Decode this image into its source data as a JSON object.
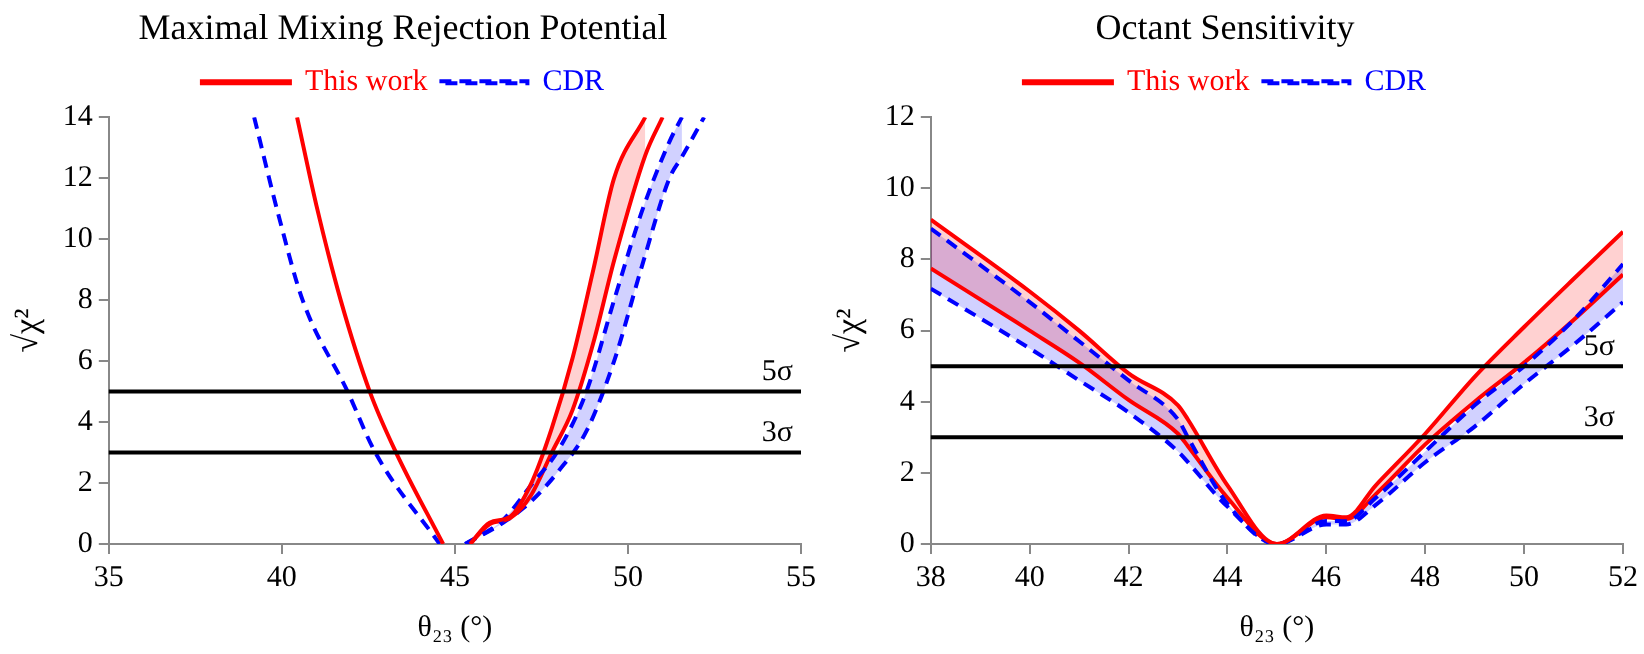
{
  "chart_data": [
    {
      "type": "line",
      "title": "Maximal Mixing Rejection Potential",
      "xlabel": "θ₂₃ (°)",
      "ylabel": "√χ²",
      "xlim": [
        35,
        55
      ],
      "xticks": [
        35,
        40,
        45,
        50,
        55
      ],
      "ylim": [
        0,
        14
      ],
      "yticks": [
        0,
        2,
        4,
        6,
        8,
        10,
        12,
        14
      ],
      "grid": false,
      "legend": "top",
      "series": [
        {
          "name": "This work",
          "color": "#ff0000",
          "line_style": "solid",
          "x": [
            45.44,
            46.0,
            46.6,
            47.2,
            47.8,
            48.4,
            49.0,
            49.6,
            50.5
          ],
          "values": [
            0,
            0.7,
            0.9,
            1.97,
            3.8,
            6.1,
            9.0,
            12,
            14
          ],
          "lower": [
            0,
            0.65,
            0.85,
            1.6,
            3,
            4.4,
            6.6,
            9.3,
            12.75
          ],
          "upper": [
            0,
            0.7,
            0.9,
            1.97,
            3.8,
            6.1,
            9.0,
            12,
            14
          ]
        },
        {
          "name": "CDR",
          "color": "#0000ff",
          "line_style": "dashed",
          "x": [
            45.3,
            46.4,
            47.2,
            48.0,
            48.8,
            49.6,
            50.4,
            51.2,
            51.56
          ],
          "values": [
            0,
            0.8,
            1.93,
            3.1,
            5,
            8,
            10.9,
            13.2,
            14
          ],
          "lower": [
            0,
            0.7,
            1.4,
            2.4,
            3.7,
            6.0,
            9.1,
            12,
            12.7
          ],
          "upper": [
            0,
            0.8,
            1.93,
            3.1,
            5,
            8,
            10.9,
            13.2,
            14
          ]
        },
        {
          "color": "#ff0000",
          "line_style": "solid",
          "x": [
            45.44,
            46.0,
            46.6,
            47.2,
            47.8,
            48.4,
            49.0,
            49.6,
            50.5,
            51.0
          ],
          "values": [
            0,
            0.65,
            0.85,
            1.6,
            3,
            4.4,
            6.6,
            9.3,
            12.75,
            14
          ]
        },
        {
          "color": "#0000ff",
          "line_style": "dashed",
          "x": [
            45.3,
            46.4,
            47.2,
            48.0,
            48.8,
            49.6,
            50.4,
            51.2,
            51.56,
            52.2
          ],
          "values": [
            0,
            0.7,
            1.4,
            2.4,
            3.7,
            6.0,
            9.1,
            12,
            12.7,
            14
          ]
        },
        {
          "color": "#ff0000",
          "line_style": "solid",
          "x": [
            40.44,
            41.0,
            41.7,
            42.54,
            43.3,
            44.66
          ],
          "values": [
            14,
            11.1,
            8,
            5,
            3,
            0
          ]
        },
        {
          "color": "#0000ff",
          "line_style": "dashed",
          "x": [
            39.2,
            39.9,
            40.6,
            41.9,
            42.7,
            44.56
          ],
          "values": [
            14,
            10.8,
            8,
            5,
            3,
            0
          ]
        }
      ],
      "ref_lines": [
        {
          "axis": "y",
          "value": 5,
          "label": "5σ",
          "color": "#000000"
        },
        {
          "axis": "y",
          "value": 3,
          "label": "3σ",
          "color": "#000000"
        }
      ]
    },
    {
      "type": "line",
      "title": "Octant Sensitivity",
      "xlabel": "θ₂₃ (°)",
      "ylabel": "√χ²",
      "xlim": [
        38,
        52
      ],
      "xticks": [
        38,
        40,
        42,
        44,
        46,
        48,
        50,
        52
      ],
      "ylim": [
        0,
        12
      ],
      "yticks": [
        0,
        2,
        4,
        6,
        8,
        10,
        12
      ],
      "grid": false,
      "legend": "top",
      "series": [
        {
          "name": "This work",
          "color": "#ff0000",
          "line_style": "solid",
          "x": [
            38,
            40,
            41,
            42,
            43,
            43.2,
            44,
            45,
            46,
            46.4,
            47,
            48,
            49,
            50,
            51,
            52
          ],
          "values": [
            9.12,
            7.1,
            6.0,
            4.8,
            3.9,
            3.5,
            1.65,
            0,
            0.8,
            0.75,
            1.65,
            3.1,
            4.7,
            6.1,
            7.45,
            8.78
          ],
          "lower": [
            7.75,
            6.0,
            5.1,
            4.05,
            3.1,
            2.75,
            1.3,
            0,
            0.75,
            0.7,
            1.4,
            2.8,
            4.0,
            5.1,
            6.3,
            7.58
          ],
          "upper": [
            9.12,
            7.1,
            6.0,
            4.8,
            3.9,
            3.5,
            1.65,
            0,
            0.8,
            0.75,
            1.65,
            3.1,
            4.7,
            6.1,
            7.45,
            8.78
          ]
        },
        {
          "name": "CDR",
          "color": "#0000ff",
          "line_style": "dashed",
          "x": [
            38,
            40,
            41,
            42,
            43,
            43.2,
            44,
            45,
            46,
            46.4,
            47,
            48,
            49,
            50,
            51,
            52
          ],
          "values": [
            8.87,
            6.8,
            5.7,
            4.6,
            3.5,
            3.0,
            1.13,
            0,
            0.65,
            0.65,
            1.3,
            2.6,
            3.9,
            5.0,
            6.3,
            7.87
          ],
          "lower": [
            7.18,
            5.5,
            4.6,
            3.7,
            2.6,
            2.3,
            1.05,
            0,
            0.55,
            0.55,
            1.1,
            2.3,
            3.3,
            4.5,
            5.6,
            6.8
          ],
          "upper": [
            8.87,
            6.8,
            5.7,
            4.6,
            3.5,
            3.0,
            1.13,
            0,
            0.65,
            0.65,
            1.3,
            2.6,
            3.9,
            5.0,
            6.3,
            7.87
          ]
        },
        {
          "color": "#ff0000",
          "line_style": "solid",
          "x": [
            38,
            40,
            41,
            42,
            43,
            43.2,
            44,
            45,
            46,
            46.4,
            47,
            48,
            49,
            50,
            51,
            52
          ],
          "values": [
            7.75,
            6.0,
            5.1,
            4.05,
            3.1,
            2.75,
            1.3,
            0,
            0.75,
            0.7,
            1.4,
            2.8,
            4.0,
            5.1,
            6.3,
            7.58
          ]
        },
        {
          "color": "#0000ff",
          "line_style": "dashed",
          "x": [
            38,
            40,
            41,
            42,
            43,
            43.2,
            44,
            45,
            46,
            46.4,
            47,
            48,
            49,
            50,
            51,
            52
          ],
          "values": [
            7.18,
            5.5,
            4.6,
            3.7,
            2.6,
            2.3,
            1.05,
            0,
            0.55,
            0.55,
            1.1,
            2.3,
            3.3,
            4.5,
            5.6,
            6.8
          ]
        }
      ],
      "ref_lines": [
        {
          "axis": "y",
          "value": 5,
          "label": "5σ",
          "color": "#000000"
        },
        {
          "axis": "y",
          "value": 3,
          "label": "3σ",
          "color": "#000000"
        }
      ]
    }
  ]
}
